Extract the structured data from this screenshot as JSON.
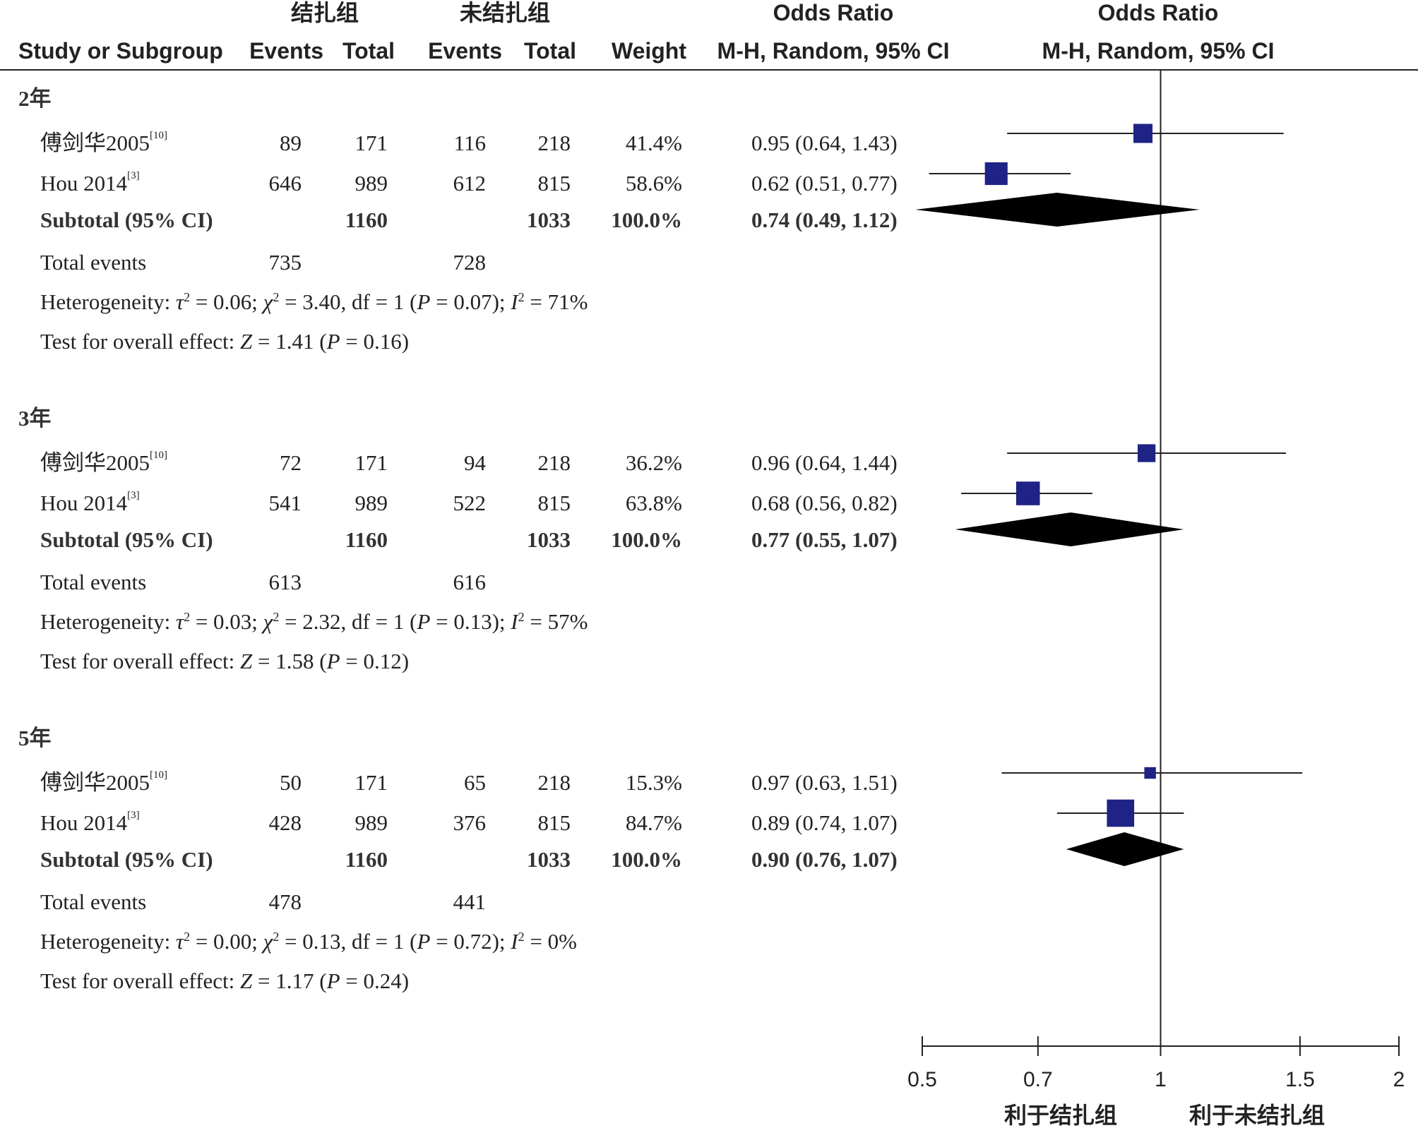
{
  "chart_data": {
    "type": "forest",
    "header": {
      "group1": "结扎组",
      "group2": "未结扎组",
      "odds_ratio_text": "Odds Ratio",
      "odds_ratio_method": "M-H, Random, 95% CI",
      "odds_ratio_plot": "Odds Ratio",
      "odds_ratio_plot_method": "M-H, Random, 95% CI",
      "study": "Study or Subgroup",
      "events1": "Events",
      "total1": "Total",
      "events2": "Events",
      "total2": "Total",
      "weight": "Weight"
    },
    "subgroups": [
      {
        "label": "2年",
        "studies": [
          {
            "name": "傅剑华2005",
            "ref": "[10]",
            "events1": "89",
            "total1": "171",
            "events2": "116",
            "total2": "218",
            "weight": "41.4%",
            "ci_text": "0.95 (0.64, 1.43)",
            "or": 0.95,
            "lo": 0.64,
            "hi": 1.43,
            "w": 41.4
          },
          {
            "name": "Hou 2014",
            "ref": "[3]",
            "events1": "646",
            "total1": "989",
            "events2": "612",
            "total2": "815",
            "weight": "58.6%",
            "ci_text": "0.62 (0.51, 0.77)",
            "or": 0.62,
            "lo": 0.51,
            "hi": 0.77,
            "w": 58.6
          }
        ],
        "subtotal": {
          "label": "Subtotal (95% CI)",
          "total1": "1160",
          "total2": "1033",
          "weight": "100.0%",
          "or_text": "0.74",
          "ci_text": "(0.49, 1.12)",
          "or": 0.74,
          "lo": 0.49,
          "hi": 1.12
        },
        "total_events": {
          "label": "Total events",
          "events1": "735",
          "events2": "728"
        },
        "heterogeneity": {
          "tau2": "0.06",
          "chi2": "3.40",
          "df": "1",
          "p": "0.07",
          "i2": "71%"
        },
        "overall": {
          "z": "1.41",
          "p": "0.16"
        }
      },
      {
        "label": "3年",
        "studies": [
          {
            "name": "傅剑华2005",
            "ref": "[10]",
            "events1": "72",
            "total1": "171",
            "events2": "94",
            "total2": "218",
            "weight": "36.2%",
            "ci_text": "0.96 (0.64, 1.44)",
            "or": 0.96,
            "lo": 0.64,
            "hi": 1.44,
            "w": 36.2
          },
          {
            "name": "Hou 2014",
            "ref": "[3]",
            "events1": "541",
            "total1": "989",
            "events2": "522",
            "total2": "815",
            "weight": "63.8%",
            "ci_text": "0.68 (0.56, 0.82)",
            "or": 0.68,
            "lo": 0.56,
            "hi": 0.82,
            "w": 63.8
          }
        ],
        "subtotal": {
          "label": "Subtotal (95% CI)",
          "total1": "1160",
          "total2": "1033",
          "weight": "100.0%",
          "or_text": "0.77",
          "ci_text": "(0.55, 1.07)",
          "or": 0.77,
          "lo": 0.55,
          "hi": 1.07
        },
        "total_events": {
          "label": "Total events",
          "events1": "613",
          "events2": "616"
        },
        "heterogeneity": {
          "tau2": "0.03",
          "chi2": "2.32",
          "df": "1",
          "p": "0.13",
          "i2": "57%"
        },
        "overall": {
          "z": "1.58",
          "p": "0.12"
        }
      },
      {
        "label": "5年",
        "studies": [
          {
            "name": "傅剑华2005",
            "ref": "[10]",
            "events1": "50",
            "total1": "171",
            "events2": "65",
            "total2": "218",
            "weight": "15.3%",
            "ci_text": "0.97 (0.63, 1.51)",
            "or": 0.97,
            "lo": 0.63,
            "hi": 1.51,
            "w": 15.3
          },
          {
            "name": "Hou 2014",
            "ref": "[3]",
            "events1": "428",
            "total1": "989",
            "events2": "376",
            "total2": "815",
            "weight": "84.7%",
            "ci_text": "0.89 (0.74, 1.07)",
            "or": 0.89,
            "lo": 0.74,
            "hi": 1.07,
            "w": 84.7
          }
        ],
        "subtotal": {
          "label": "Subtotal (95% CI)",
          "total1": "1160",
          "total2": "1033",
          "weight": "100.0%",
          "or_text": "0.90",
          "ci_text": "(0.76, 1.07)",
          "or": 0.9,
          "lo": 0.76,
          "hi": 1.07
        },
        "total_events": {
          "label": "Total events",
          "events1": "478",
          "events2": "441"
        },
        "heterogeneity": {
          "tau2": "0.00",
          "chi2": "0.13",
          "df": "1",
          "p": "0.72",
          "i2": "0%"
        },
        "overall": {
          "z": "1.17",
          "p": "0.24"
        }
      }
    ],
    "text": {
      "heterogeneity_prefix": "Heterogeneity: ",
      "overall_prefix": "Test for overall effect: "
    },
    "axis": {
      "scale": "log",
      "ticks": [
        0.5,
        0.7,
        1,
        1.5,
        2
      ],
      "tick_labels": [
        "0.5",
        "0.7",
        "1",
        "1.5",
        "2"
      ],
      "xlim": [
        0.5,
        2
      ],
      "reference": 1,
      "favours_left": "利于结扎组",
      "favours_right": "利于未结扎组"
    },
    "colors": {
      "square": "#1f2385",
      "diamond": "#000000",
      "lines": "#222222"
    }
  }
}
